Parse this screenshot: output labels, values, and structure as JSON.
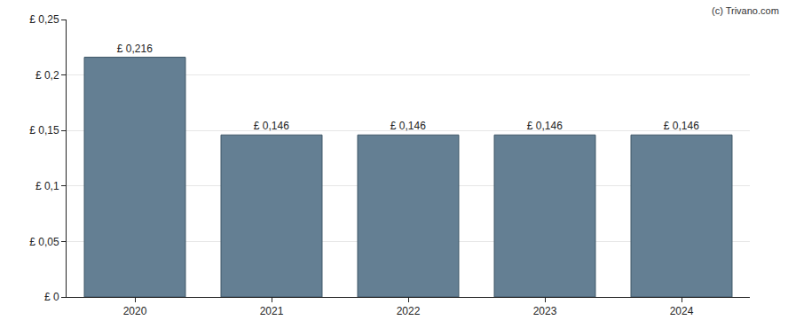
{
  "chart_data": {
    "type": "bar",
    "categories": [
      "2020",
      "2021",
      "2022",
      "2023",
      "2024"
    ],
    "values": [
      0.216,
      0.146,
      0.146,
      0.146,
      0.146
    ],
    "value_labels": [
      "£ 0,216",
      "£ 0,146",
      "£ 0,146",
      "£ 0,146",
      "£ 0,146"
    ],
    "data_labels": true,
    "color": "#647f93",
    "ylim": [
      0,
      0.25
    ],
    "yticks": [
      {
        "value": 0,
        "label": "£ 0"
      },
      {
        "value": 0.05,
        "label": "£ 0,05"
      },
      {
        "value": 0.1,
        "label": "£ 0,1"
      },
      {
        "value": 0.15,
        "label": "£ 0,15"
      },
      {
        "value": 0.2,
        "label": "£ 0,2"
      },
      {
        "value": 0.25,
        "label": "£ 0,25"
      }
    ],
    "grid": true,
    "annotations": [
      "(c) Trivano.com"
    ]
  }
}
